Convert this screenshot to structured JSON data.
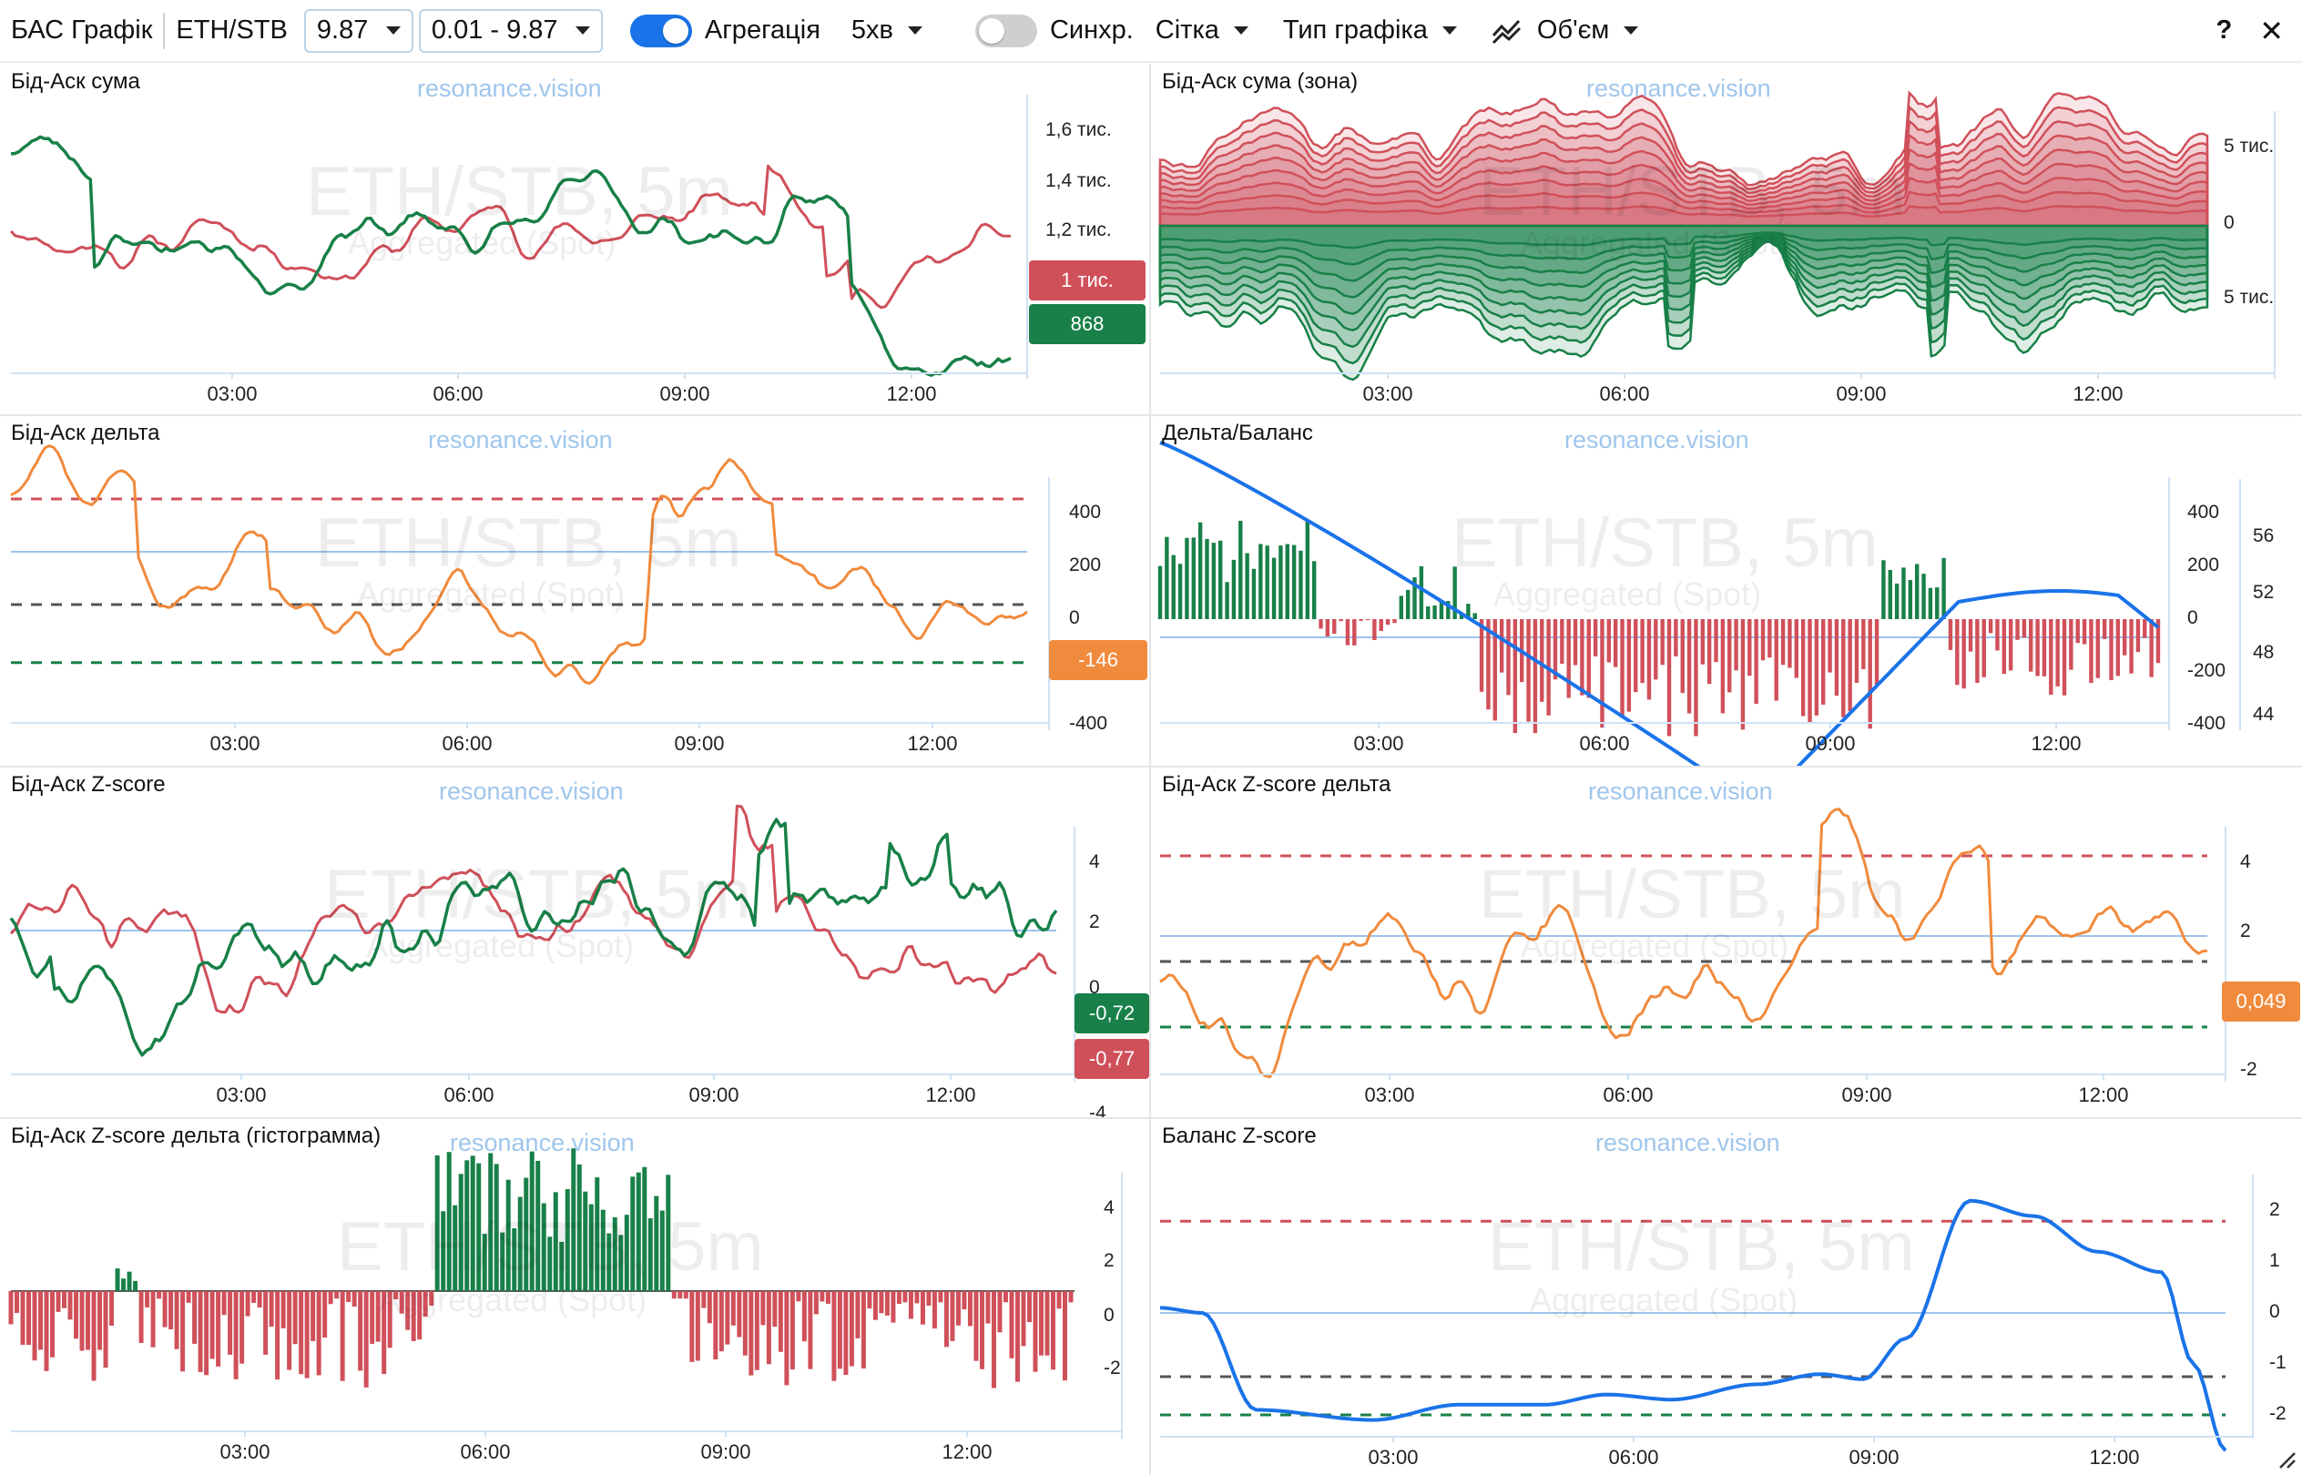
{
  "toolbar": {
    "app_title": "БАС Графік",
    "pair": "ETH/STB",
    "price_value": "9.87",
    "range_value": "0.01 - 9.87",
    "aggregation_label": "Агрегація",
    "aggregation_on": true,
    "interval": "5хв",
    "sync_label": "Синхр.",
    "sync_on": false,
    "grid_label": "Сітка",
    "chart_type_label": "Тип графіка",
    "volume_label": "Об'єм",
    "help_label": "?",
    "close_label": "✕"
  },
  "watermark": {
    "brand": "resonance.vision",
    "symbol": "ETH/STB, 5m",
    "source": "Aggregated (Spot)"
  },
  "colors": {
    "bid": "#188048",
    "ask": "#d0505a",
    "delta": "#f08a3c",
    "balance": "#1a73e8",
    "zero": "#9cc3ec",
    "neutral": "#555555"
  },
  "panels": {
    "p1": {
      "title": "Бід-Аск сума",
      "y_ticks": [
        "1,6 тис.",
        "1,4 тис.",
        "1,2 тис."
      ],
      "x_ticks": [
        "03:00",
        "06:00",
        "09:00",
        "12:00"
      ],
      "badge_ask": "1 тис.",
      "badge_bid": "868"
    },
    "p2": {
      "title": "Бід-Аск сума (зона)",
      "y_ticks": [
        "5 тис.",
        "0",
        "5 тис."
      ],
      "x_ticks": [
        "03:00",
        "06:00",
        "09:00",
        "12:00"
      ]
    },
    "p3": {
      "title": "Бід-Аск дельта",
      "y_ticks": [
        "400",
        "200",
        "0",
        "-400"
      ],
      "x_ticks": [
        "03:00",
        "06:00",
        "09:00",
        "12:00"
      ],
      "badge": "-146"
    },
    "p4": {
      "title": "Дельта/Баланс",
      "y_ticks_left": [
        "400",
        "200",
        "0",
        "-200",
        "-400"
      ],
      "y_ticks_right": [
        "56",
        "52",
        "48",
        "44"
      ],
      "x_ticks": [
        "03:00",
        "06:00",
        "09:00",
        "12:00"
      ]
    },
    "p5": {
      "title": "Бід-Аск Z-score",
      "y_ticks": [
        "4",
        "2",
        "0",
        "-4"
      ],
      "x_ticks": [
        "03:00",
        "06:00",
        "09:00",
        "12:00"
      ],
      "badge_bid": "-0,72",
      "badge_ask": "-0,77"
    },
    "p6": {
      "title": "Бід-Аск Z-score дельта",
      "y_ticks": [
        "4",
        "2",
        "-2"
      ],
      "x_ticks": [
        "03:00",
        "06:00",
        "09:00",
        "12:00"
      ],
      "badge": "0,049"
    },
    "p7": {
      "title": "Бід-Аск Z-score дельта (гістограмма)",
      "y_ticks": [
        "4",
        "2",
        "0",
        "-2"
      ],
      "x_ticks": [
        "03:00",
        "06:00",
        "09:00",
        "12:00"
      ]
    },
    "p8": {
      "title": "Баланс Z-score",
      "y_ticks": [
        "2",
        "1",
        "0",
        "-1",
        "-2"
      ],
      "x_ticks": [
        "03:00",
        "06:00",
        "09:00",
        "12:00"
      ]
    }
  }
}
